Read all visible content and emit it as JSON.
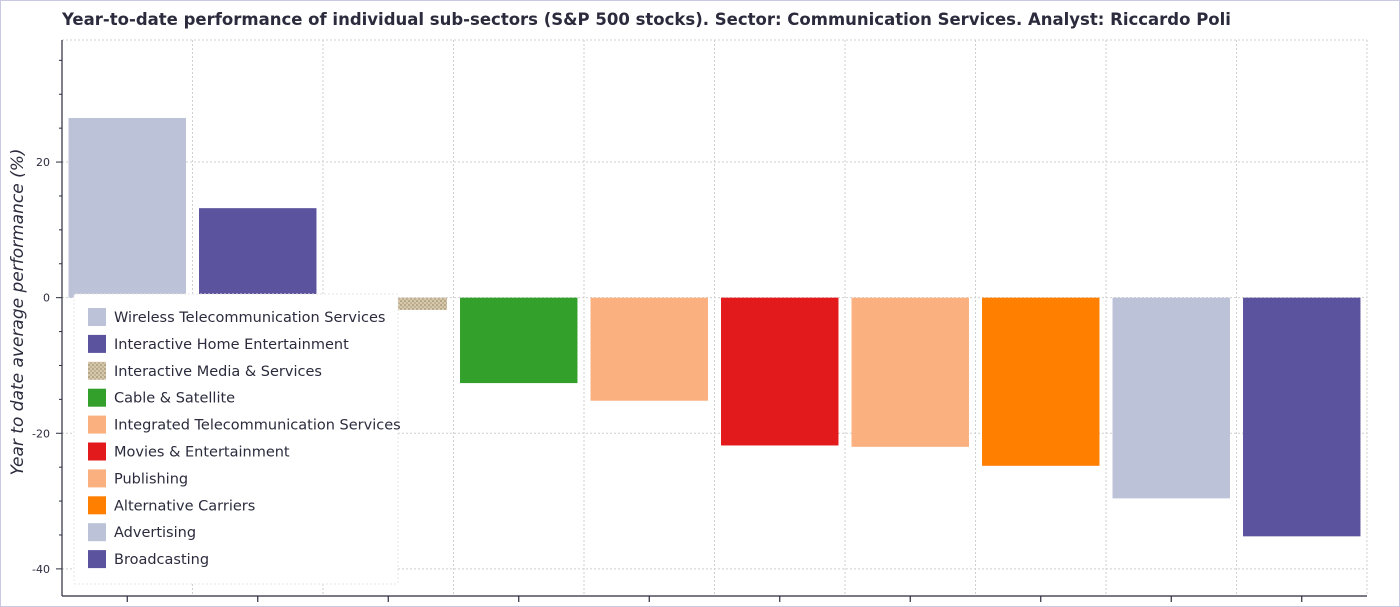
{
  "chart_data": {
    "type": "bar",
    "title": "Year-to-date performance of individual sub-sectors (S&P 500 stocks). Sector: Communication Services. Analyst: Riccardo Poli",
    "ylabel": "Year to date average performance (%)",
    "xlabel": "",
    "ylim": [
      -44,
      38
    ],
    "yticks": [
      20,
      0,
      -20,
      -40
    ],
    "ytick_labels": [
      "20",
      "0",
      "-20",
      "-40"
    ],
    "grid": true,
    "legend_placement": "bottom-left",
    "categories": [
      "Wireless Telecommunication Services",
      "Interactive Home Entertainment",
      "Interactive Media & Services",
      "Cable & Satellite",
      "Integrated Telecommunication Services",
      "Movies & Entertainment",
      "Publishing",
      "Alternative Carriers",
      "Advertising",
      "Broadcasting"
    ],
    "values": [
      26.5,
      13.2,
      -1.8,
      -12.6,
      -15.2,
      -21.8,
      -22.0,
      -24.8,
      -29.6,
      -35.2
    ],
    "colors": [
      "#bcc2d7",
      "#5b539d",
      "#c8b89a",
      "#33a02c",
      "#fbb07f",
      "#e31a1c",
      "#fbb07f",
      "#ff7f00",
      "#bcc2d7",
      "#5b539d"
    ],
    "patterns": [
      "solid",
      "solid",
      "dotted",
      "solid",
      "solid",
      "solid",
      "solid",
      "solid",
      "solid",
      "solid"
    ]
  }
}
